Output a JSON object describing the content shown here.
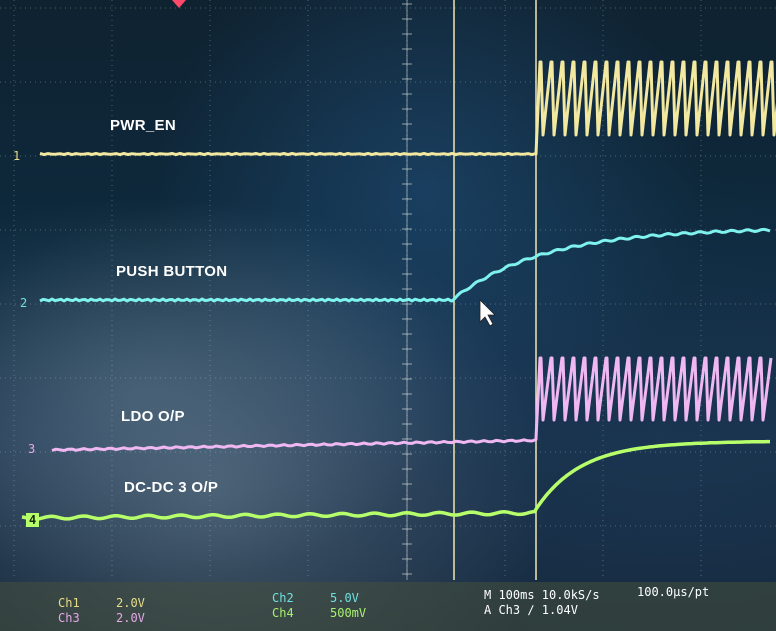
{
  "channel_labels": {
    "pwr_en": "PWR_EN",
    "push_button": "PUSH BUTTON",
    "ldo_op": "LDO O/P",
    "dcdc_op": "DC-DC 3 O/P"
  },
  "channel_markers": {
    "ch1": "1",
    "ch2": "2",
    "ch3": "3",
    "ch4": "4"
  },
  "readout": {
    "ch1_name": "Ch1",
    "ch1_scale": "2.0V",
    "ch3_name": "Ch3",
    "ch3_scale": "2.0V",
    "ch2_name": "Ch2",
    "ch2_scale": "5.0V",
    "ch4_name": "Ch4",
    "ch4_scale": "500mV",
    "timebase": "M 100ms 10.0kS/s",
    "resolution": "100.0µs/pt",
    "trigger": "A  Ch3  ∕  1.04V"
  },
  "colors": {
    "ch1": "#f2e8a0",
    "ch2": "#7ff2ee",
    "ch3": "#f0b8f2",
    "ch4": "#b6ff6a"
  }
}
